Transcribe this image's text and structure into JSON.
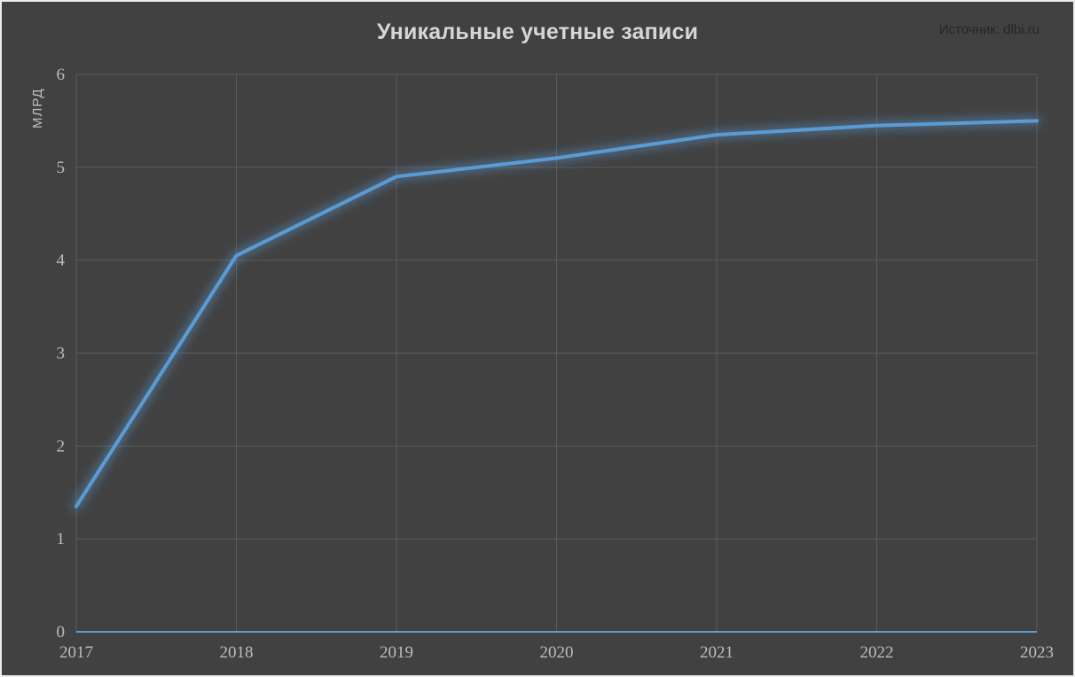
{
  "header": {
    "title": "Уникальные учетные записи",
    "source": "Источник: dlbi.ru"
  },
  "chart_data": {
    "type": "line",
    "title": "Уникальные учетные записи",
    "source": "Источник: dlbi.ru",
    "xlabel": "",
    "ylabel": "МЛРД",
    "categories": [
      "2017",
      "2018",
      "2019",
      "2020",
      "2021",
      "2022",
      "2023"
    ],
    "series": [
      {
        "name": "Уникальные учетные записи",
        "values": [
          1.35,
          4.05,
          4.9,
          5.1,
          5.35,
          5.45,
          5.5
        ]
      }
    ],
    "ylim": [
      0,
      6
    ],
    "yticks": [
      0,
      1,
      2,
      3,
      4,
      5,
      6
    ],
    "grid": true,
    "legend": false,
    "colors": {
      "background": "#414141",
      "frame_border": "#ECECEC",
      "gridline": "#5C5C5C",
      "line": "#5B9BD5",
      "glow": "#5B9BD5",
      "baseline": "#5B9BD5",
      "tick_label": "#BDBDBD",
      "title": "#D6D6D6",
      "source_text": "#262626",
      "axis_title": "#BFBFBF"
    }
  }
}
